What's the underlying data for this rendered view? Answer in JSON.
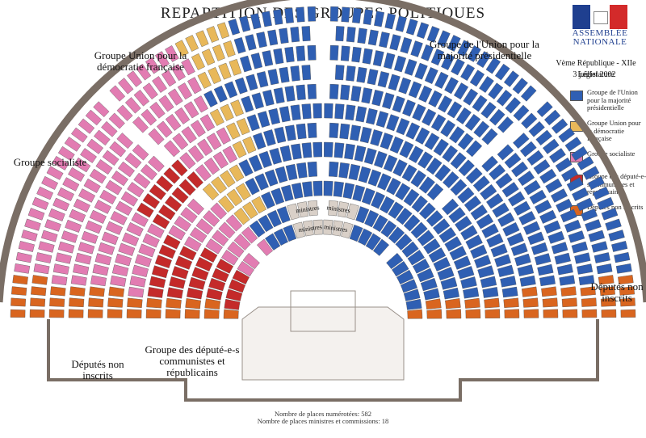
{
  "title": "REPARTITION DES GROUPES POLITIQUES",
  "logo": {
    "line1": "ASSEMBLÉE",
    "line2": "NATIONALE"
  },
  "legislature": "Vème République - XIIe Législature",
  "date": "3 juillet 2002",
  "colors": {
    "ump": "#2f5fb3",
    "udf": "#e8b85a",
    "soc": "#e27cb2",
    "com": "#c42a2a",
    "ni": "#d9651f",
    "seat_empty": "#ffffff",
    "wall": "#7a6e65"
  },
  "legend": [
    {
      "color": "#2f5fb3",
      "label": "Groupe de l'Union pour la majorité présidentielle"
    },
    {
      "color": "#e8b85a",
      "label": "Groupe Union pour la démocratie française"
    },
    {
      "color": "#e27cb2",
      "label": "Groupe socialiste"
    },
    {
      "color": "#c42a2a",
      "label": "Groupe des député-e-s communistes et républicains"
    },
    {
      "color": "#d9651f",
      "label": "Députés non inscrits"
    }
  ],
  "labels": {
    "ump": "Groupe de l'Union pour la majorité présidentielle",
    "udf": "Groupe Union pour la démocratie française",
    "soc": "Groupe socialiste",
    "com": "Groupe des député-e-s communistes et républicains",
    "ni_left": "Députés non inscrits",
    "ni_right": "Députés non inscrits"
  },
  "ministres_label": "ministres",
  "commissions_label": "commissions",
  "footer": {
    "line1": "Nombre de places numérotées: 582",
    "line2": "Nombre de places ministres et commissions: 18"
  },
  "hemicycle": {
    "seats_numbered": 582,
    "seats_ministers_commissions": 18,
    "rows": 12,
    "group_order": [
      "ni",
      "soc",
      "com",
      "udf",
      "ump",
      "ni"
    ]
  }
}
